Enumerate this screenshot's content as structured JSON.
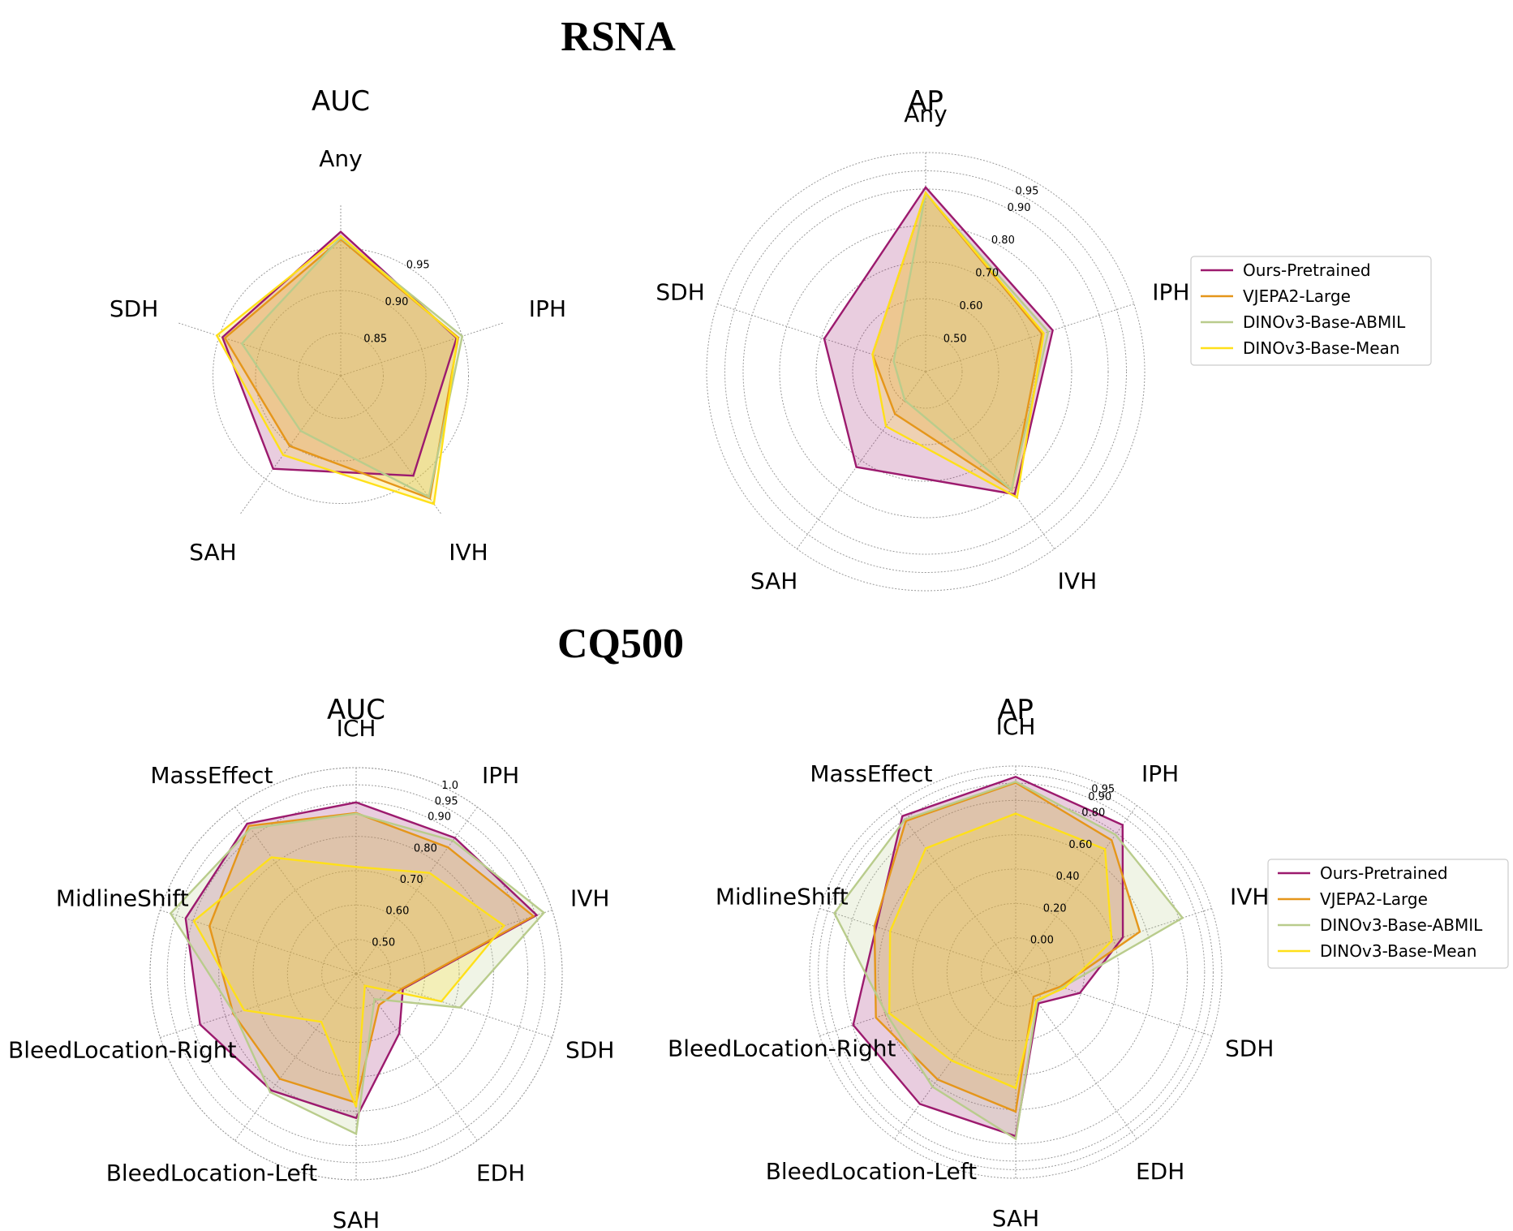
{
  "sections": [
    {
      "title": "RSNA"
    },
    {
      "title": "CQ500"
    }
  ],
  "legend": {
    "entries": [
      {
        "label": "Ours-Pretrained",
        "color": "#9c1a6e"
      },
      {
        "label": "VJEPA2-Large",
        "color": "#e5961a"
      },
      {
        "label": "DINOv3-Base-ABMIL",
        "color": "#b9cc8c"
      },
      {
        "label": "DINOv3-Base-Mean",
        "color": "#ffe019"
      }
    ]
  },
  "chart_data": [
    {
      "type": "radar",
      "dataset": "RSNA",
      "title": "AUC",
      "axes": [
        "Any",
        "IPH",
        "IVH",
        "SAH",
        "SDH"
      ],
      "rlim": [
        0.8,
        1.0
      ],
      "ticks": [
        {
          "value": 0.85,
          "label": "0.85"
        },
        {
          "value": 0.9,
          "label": "0.90"
        },
        {
          "value": 0.95,
          "label": "0.95"
        }
      ],
      "grid": true,
      "series": [
        {
          "name": "Ours-Pretrained",
          "values": [
            0.969,
            0.943,
            0.945,
            0.935,
            0.946
          ]
        },
        {
          "name": "VJEPA2-Large",
          "values": [
            0.96,
            0.945,
            0.978,
            0.902,
            0.943
          ]
        },
        {
          "name": "DINOv3-Base-ABMIL",
          "values": [
            0.962,
            0.95,
            0.976,
            0.88,
            0.922
          ]
        },
        {
          "name": "DINOv3-Base-Mean",
          "values": [
            0.964,
            0.944,
            0.986,
            0.915,
            0.953
          ]
        }
      ]
    },
    {
      "type": "radar",
      "dataset": "RSNA",
      "title": "AP",
      "axes": [
        "Any",
        "IPH",
        "IVH",
        "SAH",
        "SDH"
      ],
      "rlim": [
        0.4,
        1.0
      ],
      "ticks": [
        {
          "value": 0.5,
          "label": "0.50"
        },
        {
          "value": 0.6,
          "label": "0.60"
        },
        {
          "value": 0.7,
          "label": "0.70"
        },
        {
          "value": 0.8,
          "label": "0.80"
        },
        {
          "value": 0.9,
          "label": "0.90"
        },
        {
          "value": 0.95,
          "label": "0.95"
        }
      ],
      "grid": true,
      "series": [
        {
          "name": "Ours-Pretrained",
          "values": [
            0.905,
            0.766,
            0.815,
            0.723,
            0.692
          ]
        },
        {
          "name": "VJEPA2-Large",
          "values": [
            0.889,
            0.735,
            0.801,
            0.543,
            0.553
          ]
        },
        {
          "name": "DINOv3-Base-ABMIL",
          "values": [
            0.888,
            0.753,
            0.8,
            0.497,
            0.492
          ]
        },
        {
          "name": "DINOv3-Base-Mean",
          "values": [
            0.89,
            0.74,
            0.826,
            0.585,
            0.553
          ]
        }
      ]
    },
    {
      "type": "radar",
      "dataset": "CQ500",
      "title": "AUC",
      "axes": [
        "ICH",
        "IPH",
        "IVH",
        "SDH",
        "EDH",
        "SAH",
        "BleedLocation-Left",
        "BleedLocation-Right",
        "MidlineShift",
        "MassEffect"
      ],
      "rlim": [
        0.4,
        1.0
      ],
      "ticks": [
        {
          "value": 0.5,
          "label": "0.50"
        },
        {
          "value": 0.6,
          "label": "0.60"
        },
        {
          "value": 0.7,
          "label": "0.70"
        },
        {
          "value": 0.8,
          "label": "0.80"
        },
        {
          "value": 0.9,
          "label": "0.90"
        },
        {
          "value": 0.95,
          "label": "0.95"
        },
        {
          "value": 1.0,
          "label": "1.0"
        }
      ],
      "grid": true,
      "series": [
        {
          "name": "Ours-Pretrained",
          "values": [
            0.899,
            0.889,
            0.953,
            0.543,
            0.614,
            0.82,
            0.82,
            0.878,
            0.922,
            0.94
          ]
        },
        {
          "name": "VJEPA2-Large",
          "values": [
            0.868,
            0.855,
            0.943,
            0.54,
            0.513,
            0.775,
            0.778,
            0.776,
            0.849,
            0.932
          ]
        },
        {
          "name": "DINOv3-Base-ABMIL",
          "values": [
            0.866,
            0.879,
            0.975,
            0.718,
            0.491,
            0.866,
            0.826,
            0.773,
            0.968,
            0.923
          ]
        },
        {
          "name": "DINOv3-Base-Mean",
          "values": [
            0.711,
            0.763,
            0.853,
            0.661,
            0.443,
            0.788,
            0.573,
            0.743,
            0.897,
            0.819
          ]
        }
      ]
    },
    {
      "type": "radar",
      "dataset": "CQ500",
      "title": "AP",
      "axes": [
        "ICH",
        "IPH",
        "IVH",
        "SDH",
        "EDH",
        "SAH",
        "BleedLocation-Left",
        "BleedLocation-Right",
        "MidlineShift",
        "MassEffect"
      ],
      "rlim": [
        -0.2,
        1.0
      ],
      "ticks": [
        {
          "value": 0.0,
          "label": "0.00"
        },
        {
          "value": 0.2,
          "label": "0.20"
        },
        {
          "value": 0.4,
          "label": "0.40"
        },
        {
          "value": 0.6,
          "label": "0.60"
        },
        {
          "value": 0.8,
          "label": "0.80"
        },
        {
          "value": 0.9,
          "label": "0.90"
        },
        {
          "value": 0.95,
          "label": "0.95"
        }
      ],
      "grid": true,
      "series": [
        {
          "name": "Ours-Pretrained",
          "values": [
            0.937,
            0.859,
            0.456,
            0.193,
            0.025,
            0.755,
            0.749,
            0.795,
            0.654,
            0.923
          ]
        },
        {
          "name": "VJEPA2-Large",
          "values": [
            0.903,
            0.75,
            0.56,
            0.073,
            -0.023,
            0.612,
            0.573,
            0.656,
            0.665,
            0.888
          ]
        },
        {
          "name": "DINOv3-Base-ABMIL",
          "values": [
            0.909,
            0.789,
            0.822,
            0.086,
            0.013,
            0.771,
            0.625,
            0.591,
            0.91,
            0.898
          ]
        },
        {
          "name": "DINOv3-Base-Mean",
          "values": [
            0.723,
            0.685,
            0.388,
            0.098,
            0.004,
            0.475,
            0.436,
            0.574,
            0.569,
            0.691
          ]
        }
      ]
    }
  ]
}
